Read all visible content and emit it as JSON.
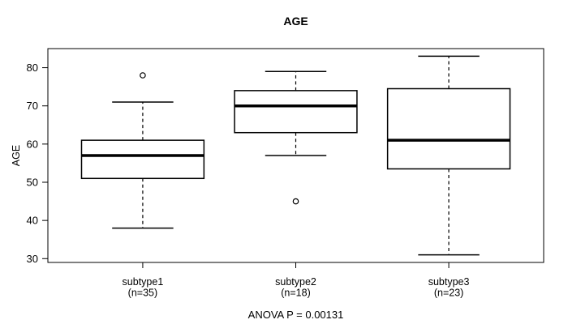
{
  "chart_data": {
    "type": "boxplot",
    "title": "AGE",
    "ylabel": "AGE",
    "xlabel": "",
    "annotation": "ANOVA P = 0.00131",
    "ylim": [
      29,
      85
    ],
    "yticks": [
      30,
      40,
      50,
      60,
      70,
      80
    ],
    "grid": false,
    "legend": false,
    "groups": [
      {
        "label": "subtype1",
        "sublabel": "(n=35)",
        "n": 35,
        "whisker_low": 38,
        "q1": 51,
        "median": 57,
        "q3": 61,
        "whisker_high": 71,
        "outliers": [
          78
        ]
      },
      {
        "label": "subtype2",
        "sublabel": "(n=18)",
        "n": 18,
        "whisker_low": 57,
        "q1": 63,
        "median": 70,
        "q3": 74,
        "whisker_high": 79,
        "outliers": [
          45
        ]
      },
      {
        "label": "subtype3",
        "sublabel": "(n=23)",
        "n": 23,
        "whisker_low": 31,
        "q1": 53.5,
        "median": 61,
        "q3": 74.5,
        "whisker_high": 83,
        "outliers": []
      }
    ],
    "colors": {
      "line": "#000000",
      "box_fill": "#ffffff",
      "background": "#ffffff"
    }
  }
}
